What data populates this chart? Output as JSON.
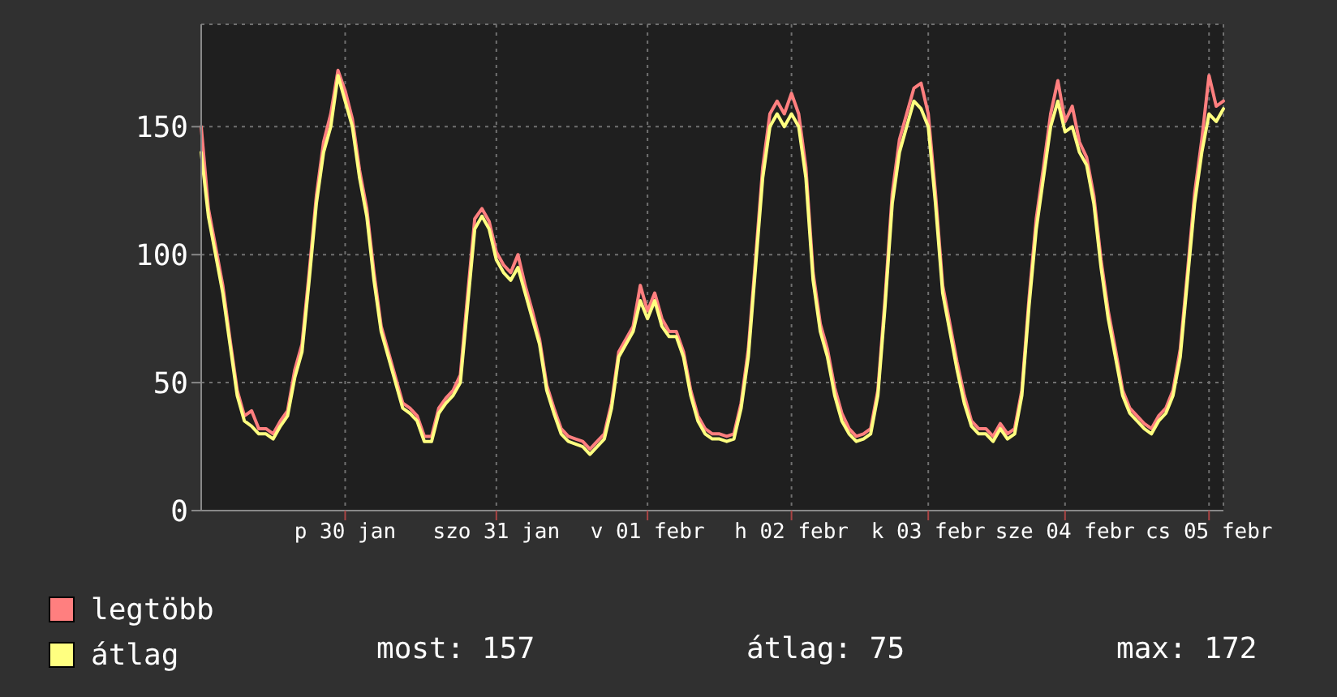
{
  "chart_data": {
    "type": "line",
    "categories": [
      null,
      null,
      null,
      null,
      null,
      null,
      null,
      null,
      null,
      null,
      null,
      null,
      null,
      null,
      null,
      null,
      null,
      null,
      null,
      null,
      "p 30 jan",
      null,
      null,
      null,
      null,
      null,
      null,
      null,
      null,
      null,
      null,
      null,
      null,
      null,
      null,
      null,
      null,
      null,
      null,
      null,
      null,
      "szo 31 jan",
      null,
      null,
      null,
      null,
      null,
      null,
      null,
      null,
      null,
      null,
      null,
      null,
      null,
      null,
      null,
      null,
      null,
      null,
      null,
      null,
      "v 01 febr",
      null,
      null,
      null,
      null,
      null,
      null,
      null,
      null,
      null,
      null,
      null,
      null,
      null,
      null,
      null,
      null,
      null,
      null,
      null,
      "h 02 febr",
      null,
      null,
      null,
      null,
      null,
      null,
      null,
      null,
      null,
      null,
      null,
      null,
      null,
      null,
      null,
      null,
      null,
      null,
      "k 03 febr",
      null,
      null,
      null,
      null,
      null,
      null,
      null,
      null,
      null,
      null,
      null,
      null,
      null,
      null,
      null,
      null,
      null,
      null,
      "sze 04 febr",
      null,
      null,
      null,
      null,
      null,
      null,
      null,
      null,
      null,
      null,
      null,
      null,
      null,
      null,
      null,
      null,
      null,
      null,
      null,
      "cs 05 febr",
      null,
      null
    ],
    "series": [
      {
        "name": "legtöbb",
        "color": "#ff7f7f",
        "values": [
          150,
          118,
          103,
          88,
          67,
          47,
          37,
          39,
          32,
          32,
          30,
          35,
          39,
          55,
          65,
          93,
          123,
          144,
          155,
          172,
          164,
          153,
          133,
          118,
          93,
          72,
          62,
          52,
          42,
          40,
          37,
          29,
          29,
          40,
          44,
          47,
          53,
          84,
          114,
          118,
          113,
          101,
          96,
          93,
          100,
          88,
          78,
          67,
          49,
          40,
          32,
          29,
          28,
          27,
          24,
          27,
          30,
          42,
          62,
          67,
          72,
          88,
          78,
          85,
          75,
          70,
          70,
          62,
          47,
          37,
          32,
          30,
          30,
          29,
          30,
          42,
          63,
          98,
          134,
          155,
          160,
          155,
          163,
          155,
          134,
          93,
          73,
          63,
          48,
          38,
          32,
          29,
          30,
          32,
          47,
          83,
          124,
          145,
          155,
          165,
          167,
          155,
          124,
          88,
          73,
          58,
          45,
          35,
          32,
          32,
          29,
          34,
          30,
          32,
          47,
          83,
          114,
          134,
          155,
          168,
          152,
          158,
          144,
          138,
          123,
          98,
          78,
          63,
          47,
          40,
          37,
          34,
          32,
          37,
          40,
          47,
          63,
          93,
          124,
          145,
          170,
          158,
          160
        ]
      },
      {
        "name": "átlag",
        "color": "#ffff80",
        "values": [
          140,
          115,
          100,
          85,
          65,
          45,
          35,
          33,
          30,
          30,
          28,
          33,
          37,
          52,
          62,
          90,
          120,
          140,
          150,
          170,
          160,
          150,
          130,
          115,
          90,
          70,
          60,
          50,
          40,
          38,
          35,
          27,
          27,
          38,
          42,
          45,
          50,
          80,
          110,
          115,
          110,
          98,
          93,
          90,
          95,
          85,
          75,
          65,
          47,
          38,
          30,
          27,
          26,
          25,
          22,
          25,
          28,
          40,
          60,
          65,
          70,
          82,
          75,
          82,
          72,
          68,
          68,
          60,
          45,
          35,
          30,
          28,
          28,
          27,
          28,
          40,
          60,
          95,
          130,
          150,
          155,
          150,
          155,
          150,
          130,
          90,
          70,
          60,
          45,
          35,
          30,
          27,
          28,
          30,
          45,
          80,
          120,
          140,
          150,
          160,
          157,
          150,
          120,
          85,
          70,
          55,
          42,
          33,
          30,
          30,
          27,
          32,
          28,
          30,
          45,
          80,
          110,
          130,
          150,
          160,
          148,
          150,
          140,
          135,
          120,
          95,
          75,
          60,
          45,
          38,
          35,
          32,
          30,
          35,
          38,
          45,
          60,
          90,
          120,
          140,
          155,
          152,
          157
        ]
      }
    ],
    "ylim": [
      0,
      190
    ],
    "yticks": [
      0,
      50,
      100,
      150
    ],
    "grid": true,
    "legend": "bottom left",
    "marker": "none",
    "line_style": "solid",
    "annotations": [
      "most: 157",
      "átlag: 75",
      "max: 172"
    ]
  }
}
